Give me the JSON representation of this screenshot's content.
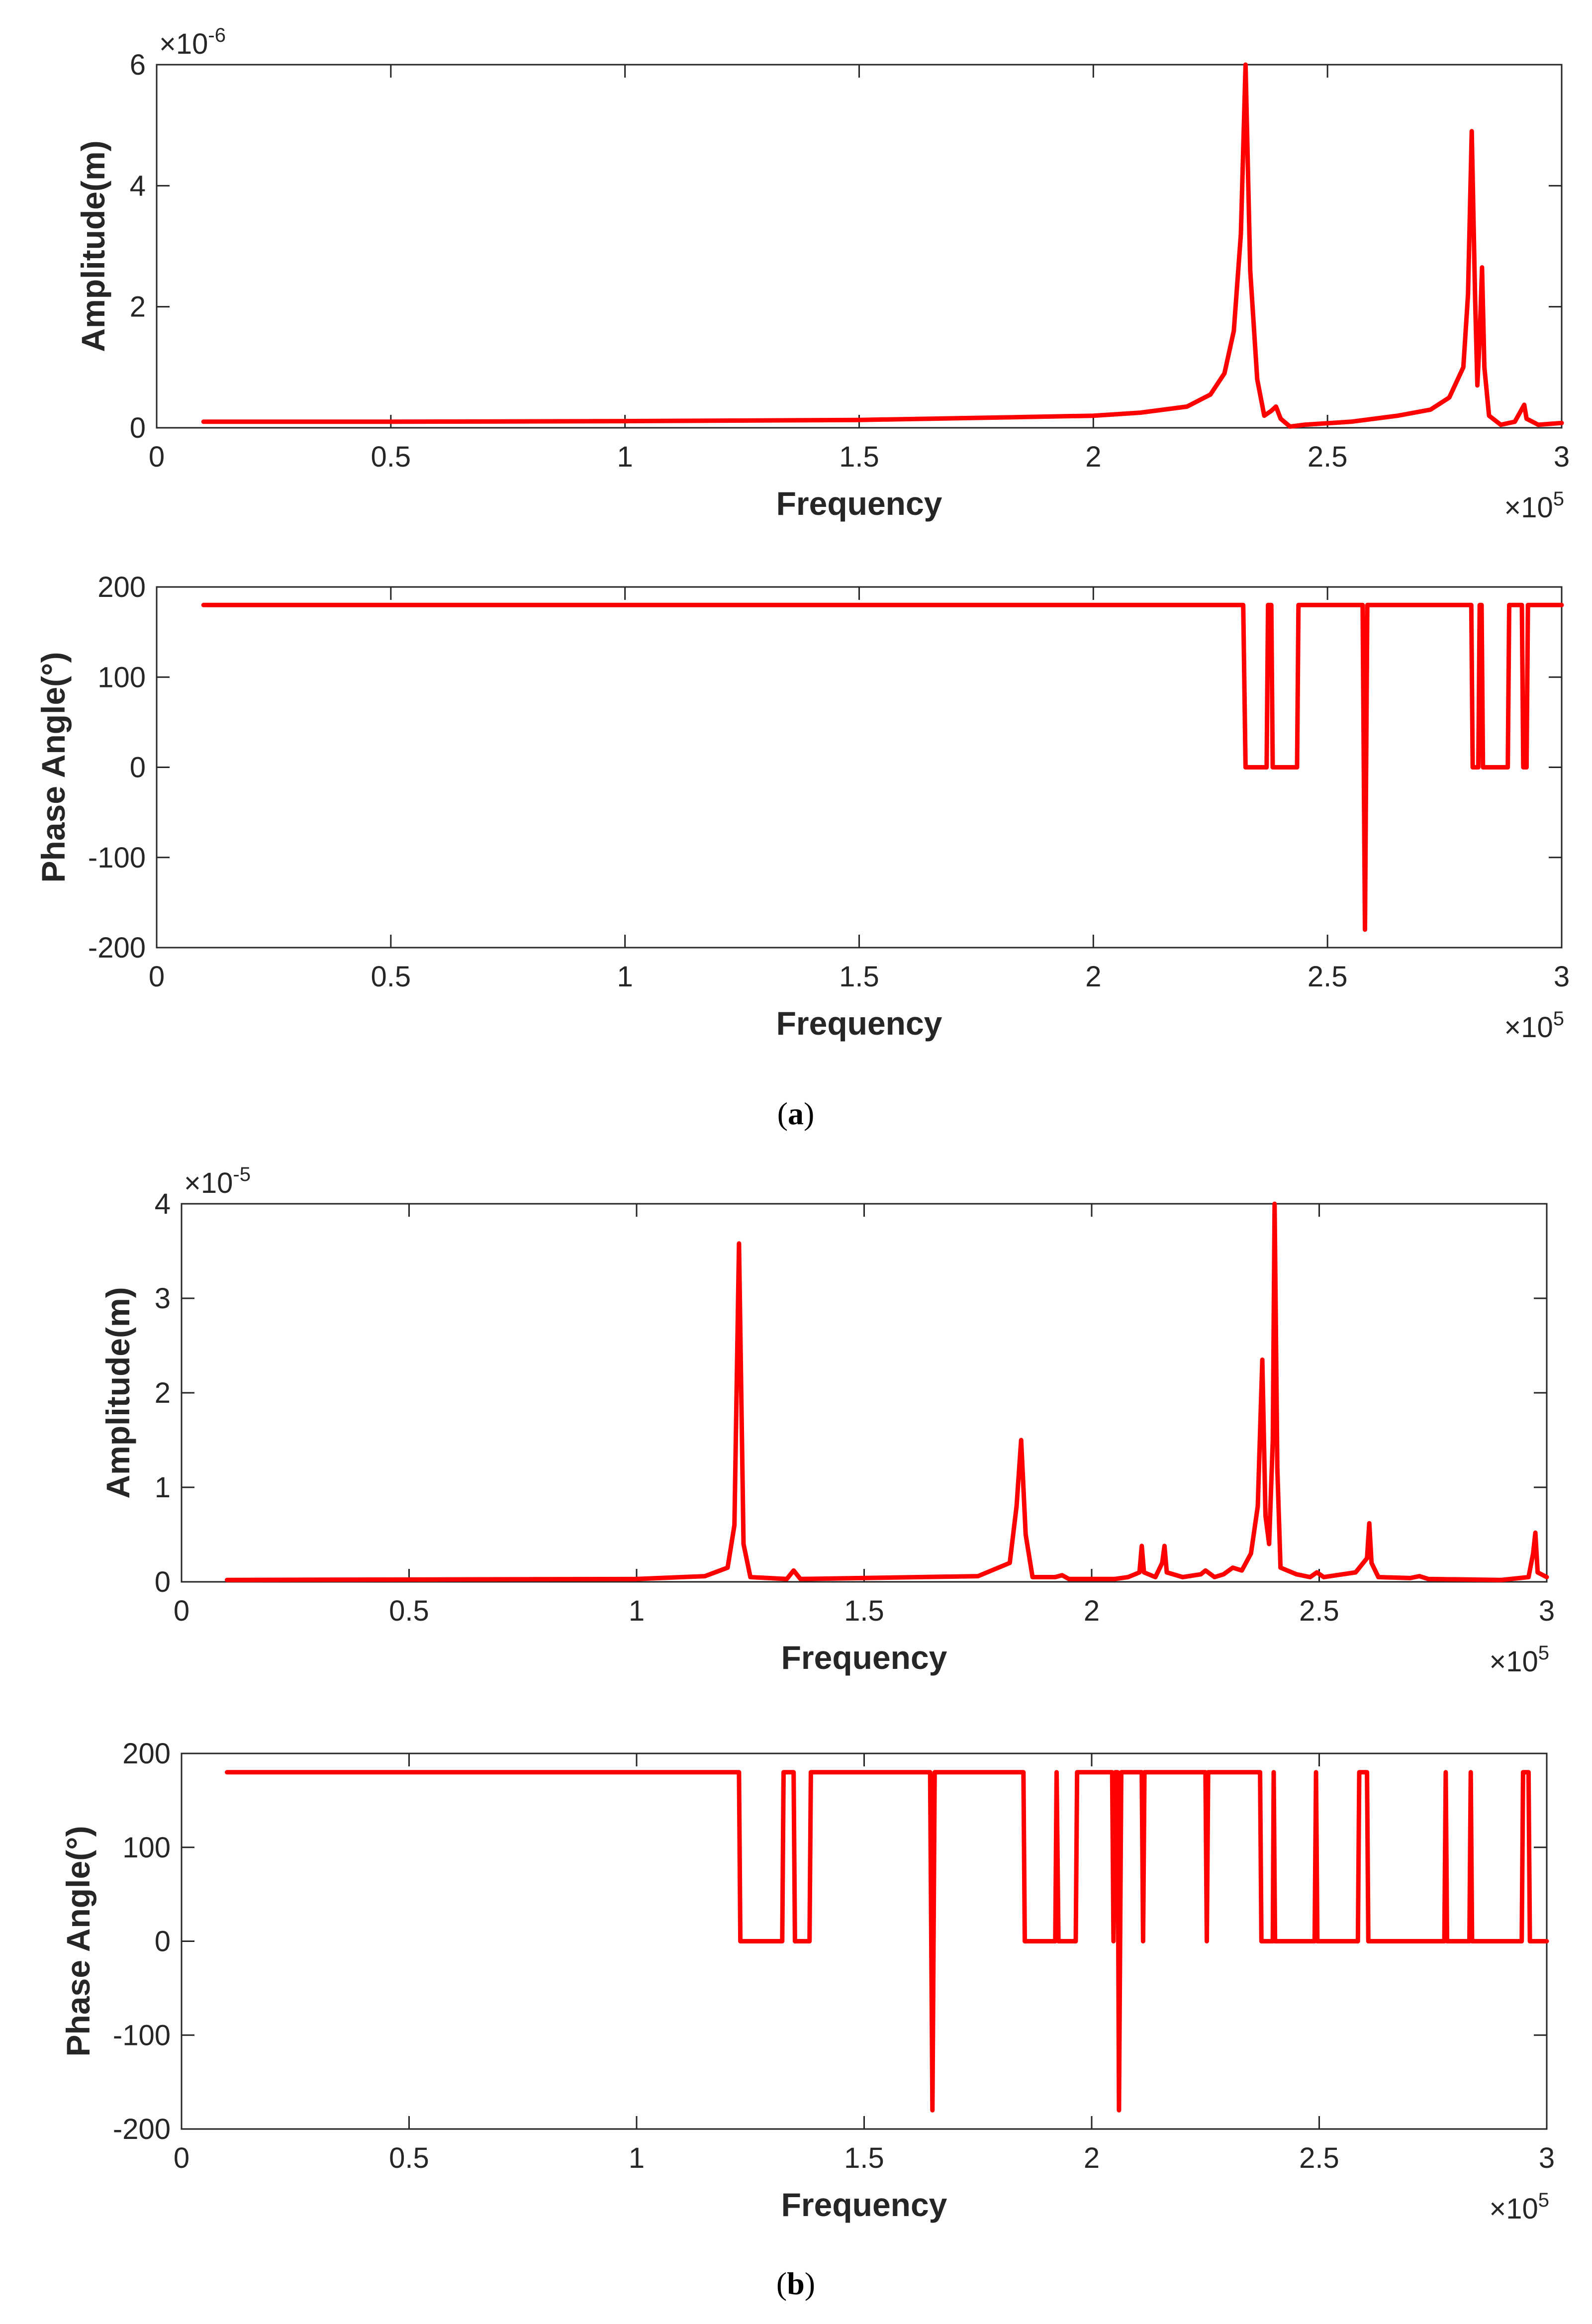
{
  "colors": {
    "line": "#ff0000",
    "axis": "#262626",
    "background": "#ffffff"
  },
  "panels": [
    {
      "caption_open": "(",
      "caption_letter": "a",
      "caption_close": ")"
    },
    {
      "caption_open": "(",
      "caption_letter": "b",
      "caption_close": ")"
    }
  ],
  "chart_data": [
    {
      "id": "a-amplitude",
      "type": "line",
      "xlabel": "Frequency",
      "ylabel": "Amplitude(m)",
      "xlim": [
        0,
        300000
      ],
      "ylim": [
        0,
        6
      ],
      "xticks": [
        0,
        50000,
        100000,
        150000,
        200000,
        250000,
        300000
      ],
      "xtick_labels": [
        "0",
        "0.5",
        "1",
        "1.5",
        "2",
        "2.5",
        "3"
      ],
      "yticks": [
        0,
        2,
        4,
        6
      ],
      "ytick_labels": [
        "0",
        "2",
        "4",
        "6"
      ],
      "x_exponent": {
        "base": "×10",
        "power": "5"
      },
      "y_exponent": {
        "base": "×10",
        "power": "-6"
      },
      "series": [
        {
          "name": "amplitude",
          "points": [
            [
              10000,
              0.1
            ],
            [
              50000,
              0.1
            ],
            [
              100000,
              0.11
            ],
            [
              150000,
              0.13
            ],
            [
              180000,
              0.17
            ],
            [
              200000,
              0.2
            ],
            [
              210000,
              0.25
            ],
            [
              220000,
              0.35
            ],
            [
              225000,
              0.55
            ],
            [
              228000,
              0.9
            ],
            [
              230000,
              1.6
            ],
            [
              231500,
              3.2
            ],
            [
              232500,
              6.0
            ],
            [
              233500,
              2.6
            ],
            [
              235000,
              0.8
            ],
            [
              236500,
              0.2
            ],
            [
              238000,
              0.28
            ],
            [
              239000,
              0.35
            ],
            [
              240000,
              0.15
            ],
            [
              242000,
              0.02
            ],
            [
              245000,
              0.05
            ],
            [
              255000,
              0.1
            ],
            [
              265000,
              0.2
            ],
            [
              272000,
              0.3
            ],
            [
              276000,
              0.5
            ],
            [
              279000,
              1.0
            ],
            [
              280000,
              2.2
            ],
            [
              280800,
              4.9
            ],
            [
              281500,
              2.2
            ],
            [
              282000,
              0.7
            ],
            [
              282500,
              1.5
            ],
            [
              283000,
              2.65
            ],
            [
              283500,
              1.0
            ],
            [
              284500,
              0.2
            ],
            [
              287000,
              0.05
            ],
            [
              290000,
              0.1
            ],
            [
              292000,
              0.38
            ],
            [
              292500,
              0.15
            ],
            [
              295000,
              0.05
            ],
            [
              300000,
              0.08
            ]
          ]
        }
      ]
    },
    {
      "id": "a-phase",
      "type": "line",
      "xlabel": "Frequency",
      "ylabel": "Phase Angle(°)",
      "xlim": [
        0,
        300000
      ],
      "ylim": [
        -200,
        200
      ],
      "xticks": [
        0,
        50000,
        100000,
        150000,
        200000,
        250000,
        300000
      ],
      "xtick_labels": [
        "0",
        "0.5",
        "1",
        "1.5",
        "2",
        "2.5",
        "3"
      ],
      "yticks": [
        -200,
        -100,
        0,
        100,
        200
      ],
      "ytick_labels": [
        "-200",
        "-100",
        "0",
        "100",
        "200"
      ],
      "x_exponent": {
        "base": "×10",
        "power": "5"
      },
      "series": [
        {
          "name": "phase",
          "points": [
            [
              10000,
              180
            ],
            [
              232000,
              180
            ],
            [
              232500,
              0
            ],
            [
              237000,
              0
            ],
            [
              237300,
              180
            ],
            [
              238000,
              180
            ],
            [
              238300,
              0
            ],
            [
              240000,
              0
            ],
            [
              240300,
              0
            ],
            [
              243500,
              0
            ],
            [
              243800,
              180
            ],
            [
              257500,
              180
            ],
            [
              258000,
              -180
            ],
            [
              258500,
              180
            ],
            [
              280700,
              180
            ],
            [
              281000,
              0
            ],
            [
              282200,
              0
            ],
            [
              282500,
              180
            ],
            [
              282900,
              180
            ],
            [
              283200,
              0
            ],
            [
              288500,
              0
            ],
            [
              288800,
              180
            ],
            [
              291500,
              180
            ],
            [
              291800,
              0
            ],
            [
              292500,
              0
            ],
            [
              292800,
              180
            ],
            [
              300000,
              180
            ]
          ]
        }
      ]
    },
    {
      "id": "b-amplitude",
      "type": "line",
      "xlabel": "Frequency",
      "ylabel": "Amplitude(m)",
      "xlim": [
        0,
        300000
      ],
      "ylim": [
        0,
        4
      ],
      "xticks": [
        0,
        50000,
        100000,
        150000,
        200000,
        250000,
        300000
      ],
      "xtick_labels": [
        "0",
        "0.5",
        "1",
        "1.5",
        "2",
        "2.5",
        "3"
      ],
      "yticks": [
        0,
        1,
        2,
        3,
        4
      ],
      "ytick_labels": [
        "0",
        "1",
        "2",
        "3",
        "4"
      ],
      "x_exponent": {
        "base": "×10",
        "power": "5"
      },
      "y_exponent": {
        "base": "×10",
        "power": "-5"
      },
      "series": [
        {
          "name": "amplitude",
          "points": [
            [
              10000,
              0.02
            ],
            [
              100000,
              0.03
            ],
            [
              115000,
              0.06
            ],
            [
              120000,
              0.15
            ],
            [
              121500,
              0.6
            ],
            [
              122500,
              3.58
            ],
            [
              123500,
              0.4
            ],
            [
              125000,
              0.05
            ],
            [
              133000,
              0.03
            ],
            [
              134500,
              0.12
            ],
            [
              136000,
              0.03
            ],
            [
              175000,
              0.06
            ],
            [
              182000,
              0.2
            ],
            [
              183500,
              0.8
            ],
            [
              184500,
              1.5
            ],
            [
              185500,
              0.5
            ],
            [
              187000,
              0.05
            ],
            [
              192000,
              0.05
            ],
            [
              193500,
              0.07
            ],
            [
              195000,
              0.03
            ],
            [
              205000,
              0.03
            ],
            [
              208000,
              0.05
            ],
            [
              210500,
              0.1
            ],
            [
              211000,
              0.38
            ],
            [
              211500,
              0.1
            ],
            [
              214000,
              0.05
            ],
            [
              215500,
              0.2
            ],
            [
              216000,
              0.38
            ],
            [
              216500,
              0.1
            ],
            [
              220000,
              0.05
            ],
            [
              224000,
              0.08
            ],
            [
              225000,
              0.12
            ],
            [
              227000,
              0.05
            ],
            [
              229000,
              0.08
            ],
            [
              231000,
              0.15
            ],
            [
              233000,
              0.12
            ],
            [
              235000,
              0.3
            ],
            [
              236500,
              0.8
            ],
            [
              237500,
              2.35
            ],
            [
              238200,
              0.7
            ],
            [
              239000,
              0.4
            ],
            [
              239800,
              1.5
            ],
            [
              240200,
              4.0
            ],
            [
              240800,
              1.2
            ],
            [
              241500,
              0.15
            ],
            [
              245000,
              0.08
            ],
            [
              248000,
              0.05
            ],
            [
              249500,
              0.1
            ],
            [
              251000,
              0.05
            ],
            [
              258000,
              0.1
            ],
            [
              260500,
              0.25
            ],
            [
              261000,
              0.62
            ],
            [
              261500,
              0.2
            ],
            [
              263000,
              0.05
            ],
            [
              270000,
              0.04
            ],
            [
              272000,
              0.06
            ],
            [
              274000,
              0.03
            ],
            [
              290000,
              0.02
            ],
            [
              296000,
              0.05
            ],
            [
              297000,
              0.3
            ],
            [
              297500,
              0.52
            ],
            [
              298000,
              0.1
            ],
            [
              300000,
              0.05
            ]
          ]
        }
      ]
    },
    {
      "id": "b-phase",
      "type": "line",
      "xlabel": "Frequency",
      "ylabel": "Phase Angle(°)",
      "xlim": [
        0,
        300000
      ],
      "ylim": [
        -200,
        200
      ],
      "xticks": [
        0,
        50000,
        100000,
        150000,
        200000,
        250000,
        300000
      ],
      "xtick_labels": [
        "0",
        "0.5",
        "1",
        "1.5",
        "2",
        "2.5",
        "3"
      ],
      "yticks": [
        -200,
        -100,
        0,
        100,
        200
      ],
      "ytick_labels": [
        "-200",
        "-100",
        "0",
        "100",
        "200"
      ],
      "x_exponent": {
        "base": "×10",
        "power": "5"
      },
      "series": [
        {
          "name": "phase",
          "points": [
            [
              10000,
              180
            ],
            [
              122500,
              180
            ],
            [
              122800,
              0
            ],
            [
              132000,
              0
            ],
            [
              132300,
              180
            ],
            [
              134500,
              180
            ],
            [
              134800,
              0
            ],
            [
              138000,
              0
            ],
            [
              138300,
              180
            ],
            [
              164500,
              180
            ],
            [
              165000,
              -180
            ],
            [
              165500,
              180
            ],
            [
              185000,
              180
            ],
            [
              185300,
              0
            ],
            [
              192000,
              0
            ],
            [
              192300,
              180
            ],
            [
              192700,
              0
            ],
            [
              196500,
              0
            ],
            [
              196800,
              180
            ],
            [
              204500,
              180
            ],
            [
              204800,
              0
            ],
            [
              205200,
              180
            ],
            [
              205700,
              180
            ],
            [
              206000,
              -180
            ],
            [
              206500,
              180
            ],
            [
              211000,
              180
            ],
            [
              211300,
              0
            ],
            [
              211600,
              180
            ],
            [
              225000,
              180
            ],
            [
              225300,
              0
            ],
            [
              225600,
              180
            ],
            [
              237000,
              180
            ],
            [
              237300,
              0
            ],
            [
              239800,
              0
            ],
            [
              240000,
              180
            ],
            [
              240300,
              0
            ],
            [
              249000,
              0
            ],
            [
              249300,
              180
            ],
            [
              249600,
              0
            ],
            [
              258500,
              0
            ],
            [
              258800,
              180
            ],
            [
              260500,
              180
            ],
            [
              260800,
              0
            ],
            [
              277500,
              0
            ],
            [
              277800,
              180
            ],
            [
              278100,
              0
            ],
            [
              283000,
              0
            ],
            [
              283300,
              180
            ],
            [
              283600,
              0
            ],
            [
              294500,
              0
            ],
            [
              294800,
              180
            ],
            [
              296000,
              180
            ],
            [
              296300,
              0
            ],
            [
              298000,
              0
            ],
            [
              300000,
              0
            ]
          ]
        }
      ]
    }
  ]
}
